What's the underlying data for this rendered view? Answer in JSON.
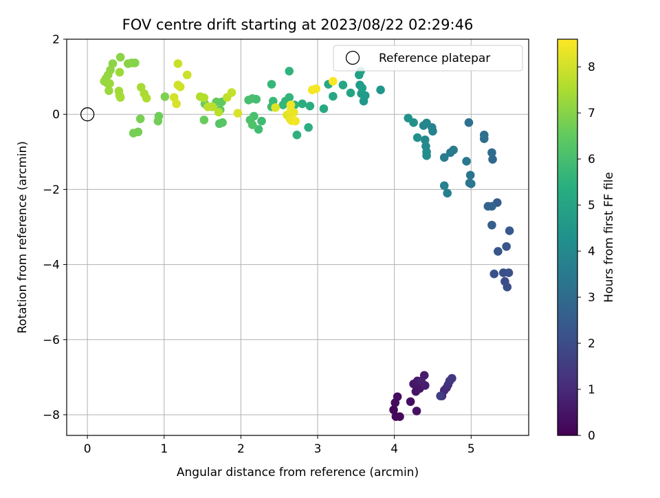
{
  "chart_data": {
    "type": "scatter",
    "title": "FOV centre drift starting at 2023/08/22 02:29:46",
    "xlabel": "Angular distance from reference (arcmin)",
    "ylabel": "Rotation from reference (arcmin)",
    "xlim": [
      -0.27,
      5.75
    ],
    "ylim": [
      -8.55,
      2.0
    ],
    "xticks": [
      0,
      1,
      2,
      3,
      4,
      5
    ],
    "yticks": [
      -8,
      -6,
      -4,
      -2,
      0,
      2
    ],
    "grid": true,
    "legend": {
      "placement": "top-right",
      "entries": [
        "Reference platepar"
      ]
    },
    "reference_point": {
      "x": 0,
      "y": 0
    },
    "colorbar": {
      "label": "Hours from first FF file",
      "range": [
        0,
        8.6
      ],
      "ticks": [
        0,
        1,
        2,
        3,
        4,
        5,
        6,
        7,
        8
      ],
      "colormap": "viridis"
    },
    "points": [
      [
        3.99,
        -7.87,
        0.1
      ],
      [
        4.02,
        -8.05,
        0.15
      ],
      [
        4.07,
        -8.05,
        0.2
      ],
      [
        4.01,
        -7.68,
        0.25
      ],
      [
        4.04,
        -7.52,
        0.3
      ],
      [
        4.21,
        -7.65,
        0.35
      ],
      [
        4.29,
        -7.9,
        0.4
      ],
      [
        4.28,
        -7.38,
        0.45
      ],
      [
        4.33,
        -7.3,
        0.5
      ],
      [
        4.25,
        -7.18,
        0.55
      ],
      [
        4.3,
        -7.1,
        0.6
      ],
      [
        4.39,
        -6.95,
        0.65
      ],
      [
        4.4,
        -7.22,
        0.7
      ],
      [
        4.35,
        -7.1,
        0.75
      ],
      [
        4.62,
        -7.5,
        0.9
      ],
      [
        4.65,
        -7.35,
        1.0
      ],
      [
        4.68,
        -7.28,
        1.1
      ],
      [
        4.7,
        -7.2,
        1.2
      ],
      [
        4.72,
        -7.1,
        1.3
      ],
      [
        4.75,
        -7.03,
        1.4
      ],
      [
        4.6,
        -7.5,
        1.6
      ],
      [
        5.44,
        -4.45,
        2.0
      ],
      [
        5.47,
        -4.6,
        2.05
      ],
      [
        5.42,
        -4.22,
        2.1
      ],
      [
        5.49,
        -4.22,
        2.15
      ],
      [
        5.3,
        -4.25,
        2.2
      ],
      [
        5.35,
        -3.65,
        2.3
      ],
      [
        5.46,
        -3.52,
        2.35
      ],
      [
        5.5,
        -3.1,
        2.4
      ],
      [
        5.34,
        -2.35,
        2.5
      ],
      [
        5.27,
        -2.95,
        2.6
      ],
      [
        5.22,
        -2.45,
        2.7
      ],
      [
        5.27,
        -2.45,
        2.75
      ],
      [
        5.28,
        -1.2,
        2.9
      ],
      [
        5.27,
        -1.02,
        3.0
      ],
      [
        5.17,
        -0.65,
        3.1
      ],
      [
        5.17,
        -0.55,
        3.15
      ],
      [
        4.97,
        -0.22,
        3.2
      ],
      [
        4.99,
        -1.62,
        3.3
      ],
      [
        4.98,
        -1.83,
        3.35
      ],
      [
        5.0,
        -1.85,
        3.4
      ],
      [
        4.94,
        -1.25,
        3.45
      ],
      [
        4.73,
        -1.02,
        3.5
      ],
      [
        4.77,
        -0.95,
        3.55
      ],
      [
        4.65,
        -1.15,
        3.6
      ],
      [
        4.69,
        -2.1,
        3.7
      ],
      [
        4.65,
        -1.9,
        3.75
      ],
      [
        4.5,
        -0.45,
        3.85
      ],
      [
        4.49,
        -0.35,
        3.9
      ],
      [
        4.42,
        -0.23,
        3.95
      ],
      [
        4.38,
        -0.3,
        4.0
      ],
      [
        4.4,
        -0.68,
        4.05
      ],
      [
        4.41,
        -0.85,
        4.1
      ],
      [
        4.42,
        -1.0,
        4.15
      ],
      [
        4.42,
        -1.1,
        4.2
      ],
      [
        4.3,
        -0.62,
        4.3
      ],
      [
        4.25,
        -0.22,
        4.35
      ],
      [
        4.18,
        -0.1,
        4.4
      ],
      [
        3.82,
        0.65,
        4.5
      ],
      [
        3.6,
        0.35,
        4.6
      ],
      [
        3.62,
        0.5,
        4.65
      ],
      [
        3.55,
        0.78,
        4.7
      ],
      [
        3.57,
        0.55,
        4.75
      ],
      [
        3.58,
        0.7,
        4.8
      ],
      [
        3.54,
        1.05,
        4.85
      ],
      [
        3.56,
        1.15,
        4.9
      ],
      [
        3.43,
        0.57,
        5.0
      ],
      [
        3.33,
        0.78,
        5.05
      ],
      [
        3.2,
        0.48,
        5.1
      ],
      [
        3.14,
        0.8,
        5.15
      ],
      [
        3.08,
        0.15,
        5.2
      ],
      [
        2.9,
        0.22,
        5.3
      ],
      [
        2.8,
        0.28,
        5.35
      ],
      [
        2.88,
        -0.35,
        5.4
      ],
      [
        2.73,
        -0.55,
        5.45
      ],
      [
        2.7,
        0.25,
        5.5
      ],
      [
        2.63,
        1.15,
        5.55
      ],
      [
        2.63,
        0.45,
        5.6
      ],
      [
        2.58,
        0.35,
        5.65
      ],
      [
        2.55,
        0.25,
        5.7
      ],
      [
        2.4,
        0.8,
        5.75
      ],
      [
        2.42,
        0.35,
        5.8
      ],
      [
        2.4,
        0.2,
        5.85
      ],
      [
        2.27,
        -0.18,
        5.9
      ],
      [
        2.23,
        -0.4,
        5.95
      ],
      [
        2.2,
        0.4,
        6.0
      ],
      [
        2.15,
        0.42,
        6.05
      ],
      [
        2.1,
        0.38,
        6.05
      ],
      [
        2.17,
        -0.05,
        6.1
      ],
      [
        2.12,
        -0.15,
        6.15
      ],
      [
        2.15,
        -0.28,
        6.2
      ],
      [
        1.72,
        -0.25,
        6.3
      ],
      [
        1.76,
        -0.22,
        6.35
      ],
      [
        1.73,
        0.12,
        6.4
      ],
      [
        1.75,
        0.33,
        6.45
      ],
      [
        1.68,
        0.33,
        6.5
      ],
      [
        1.62,
        0.2,
        6.55
      ],
      [
        1.53,
        0.28,
        6.6
      ],
      [
        1.52,
        -0.15,
        6.6
      ],
      [
        0.93,
        -0.05,
        6.7
      ],
      [
        0.92,
        -0.18,
        6.75
      ],
      [
        0.66,
        -0.47,
        6.8
      ],
      [
        0.6,
        -0.5,
        6.8
      ],
      [
        0.69,
        -0.12,
        6.85
      ],
      [
        1.01,
        0.47,
        6.9
      ],
      [
        0.58,
        1.37,
        7.0
      ],
      [
        0.62,
        1.37,
        7.0
      ],
      [
        0.53,
        1.35,
        7.05
      ],
      [
        0.43,
        1.52,
        7.1
      ],
      [
        0.33,
        1.35,
        7.1
      ],
      [
        0.3,
        1.18,
        7.15
      ],
      [
        0.27,
        1.05,
        7.2
      ],
      [
        0.24,
        0.95,
        7.2
      ],
      [
        0.22,
        0.88,
        7.25
      ],
      [
        0.26,
        0.83,
        7.25
      ],
      [
        0.29,
        0.82,
        7.3
      ],
      [
        0.28,
        0.63,
        7.3
      ],
      [
        0.42,
        1.12,
        7.35
      ],
      [
        0.41,
        0.62,
        7.4
      ],
      [
        0.42,
        0.5,
        7.4
      ],
      [
        0.43,
        0.45,
        7.45
      ],
      [
        0.7,
        0.72,
        7.45
      ],
      [
        0.74,
        0.55,
        7.5
      ],
      [
        0.77,
        0.43,
        7.55
      ],
      [
        1.47,
        0.47,
        7.6
      ],
      [
        1.52,
        0.44,
        7.65
      ],
      [
        1.63,
        0.2,
        7.7
      ],
      [
        1.71,
        0.06,
        7.7
      ],
      [
        1.57,
        0.2,
        7.75
      ],
      [
        1.82,
        0.45,
        7.8
      ],
      [
        1.88,
        0.58,
        7.85
      ],
      [
        1.18,
        1.35,
        7.9
      ],
      [
        1.3,
        1.05,
        7.95
      ],
      [
        1.18,
        0.78,
        8.0
      ],
      [
        1.21,
        0.73,
        8.0
      ],
      [
        1.13,
        0.45,
        8.05
      ],
      [
        1.16,
        0.28,
        8.1
      ],
      [
        1.96,
        0.03,
        8.1
      ],
      [
        2.45,
        0.18,
        8.2
      ],
      [
        2.6,
        -0.02,
        8.25
      ],
      [
        2.64,
        -0.12,
        8.3
      ],
      [
        2.65,
        0.1,
        8.35
      ],
      [
        2.69,
        0.05,
        8.35
      ],
      [
        2.65,
        0.25,
        8.4
      ],
      [
        2.66,
        -0.17,
        8.4
      ],
      [
        2.71,
        -0.18,
        8.45
      ],
      [
        2.93,
        0.65,
        8.5
      ],
      [
        2.98,
        0.68,
        8.5
      ],
      [
        3.2,
        0.88,
        8.55
      ]
    ]
  }
}
